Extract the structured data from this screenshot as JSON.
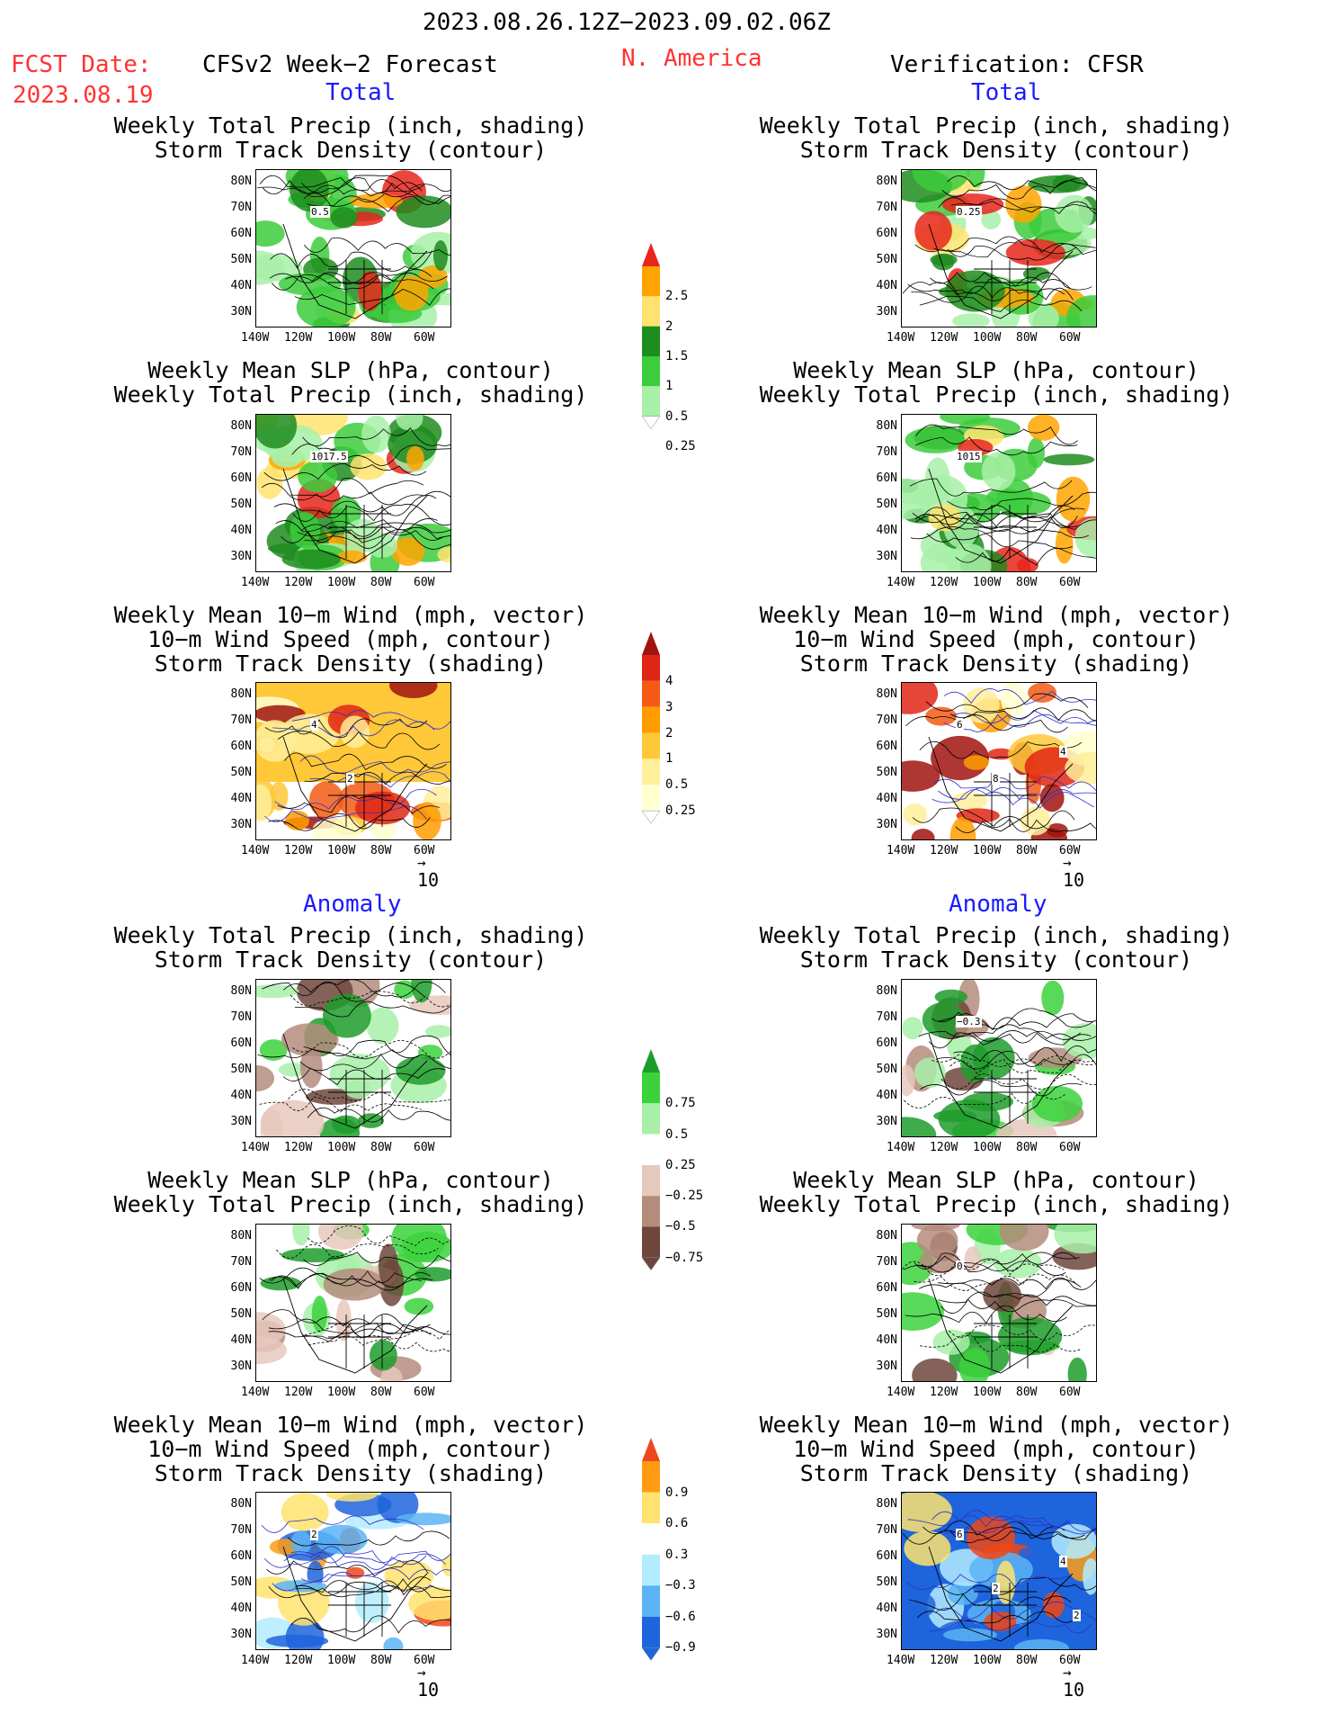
{
  "header": {
    "period": "2023.08.26.12Z−2023.09.02.06Z",
    "fcst_label": "FCST Date:",
    "fcst_date": "2023.08.19",
    "model": "CFSv2 Week−2 Forecast",
    "region": "N. America",
    "verification": "Verification: CFSR"
  },
  "sections": {
    "total": "Total",
    "anomaly": "Anomaly"
  },
  "titles": {
    "precip_storm": [
      "Weekly Total Precip (inch, shading)",
      "Storm Track Density (contour)"
    ],
    "slp_precip": [
      "Weekly Mean SLP (hPa, contour)",
      "Weekly Total Precip (inch, shading)"
    ],
    "wind": [
      "Weekly Mean 10−m Wind (mph, vector)",
      "10−m Wind Speed (mph, contour)",
      "Storm Track Density (shading)"
    ]
  },
  "axes": {
    "lat": [
      "80N",
      "70N",
      "60N",
      "50N",
      "40N",
      "30N"
    ],
    "lon": [
      "140W",
      "120W",
      "100W",
      "80W",
      "60W"
    ]
  },
  "vector_ref": "10",
  "colorbars": {
    "precip_total": {
      "labels": [
        "2.5",
        "2",
        "1.5",
        "1",
        "0.5",
        "0.25"
      ],
      "colors": [
        "#e8261c",
        "#ffa400",
        "#ffe36e",
        "#1e8c1e",
        "#3ccd3c",
        "#a8f0a8"
      ]
    },
    "storm_total": {
      "labels": [
        "4",
        "3",
        "2",
        "1",
        "0.5",
        "0.25"
      ],
      "colors": [
        "#a0140f",
        "#e02614",
        "#f55a14",
        "#ff9c00",
        "#ffc838",
        "#ffee9a",
        "#ffffd0"
      ]
    },
    "precip_anom": {
      "labels": [
        "0.75",
        "0.5",
        "0.25",
        "−0.25",
        "−0.5",
        "−0.75"
      ],
      "colors": [
        "#1e9c2a",
        "#3cd23c",
        "#a8f0a8",
        "#ffffff",
        "#e6c8bc",
        "#b48c7c",
        "#6e463c"
      ]
    },
    "storm_anom": {
      "labels": [
        "0.9",
        "0.6",
        "0.3",
        "−0.3",
        "−0.6",
        "−0.9"
      ],
      "colors": [
        "#f0461e",
        "#ff9c14",
        "#ffe36e",
        "#ffffff",
        "#b4ecff",
        "#5ab4f5",
        "#1e64dc"
      ]
    }
  },
  "panel_labels": {
    "f_precip_total": "0.5",
    "v_precip_total": "0.25",
    "f_slp_total": "1017.5",
    "v_slp_total": "1015",
    "f_wind_total": [
      "4",
      "2"
    ],
    "v_wind_total": [
      "6",
      "8",
      "4"
    ],
    "v_precip_anom": "−0.3",
    "v_slp_anom": "0",
    "f_wind_anom": [
      "2"
    ],
    "v_wind_anom": [
      "6",
      "2",
      "4",
      "2"
    ]
  }
}
